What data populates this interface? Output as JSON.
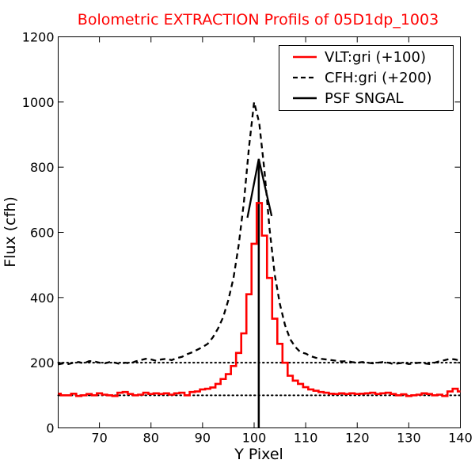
{
  "chart_data": {
    "type": "line",
    "title": "Bolometric EXTRACTION Profils of 05D1dp_1003",
    "xlabel": "Y Pixel",
    "ylabel": "Flux (cfh)",
    "xlim": [
      62,
      140
    ],
    "ylim": [
      0,
      1200
    ],
    "xticks": [
      "70",
      "80",
      "90",
      "100",
      "110",
      "120",
      "130",
      "140"
    ],
    "yticks": [
      "0",
      "200",
      "400",
      "600",
      "800",
      "1000",
      "1200"
    ],
    "grid": false,
    "legend_position": "top-right",
    "legend": [
      "VLT:gri (+100)",
      "CFH:gri (+200)",
      "PSF SNGAL"
    ],
    "series": [
      {
        "name": "VLT:gri (+100)",
        "style": "steps",
        "color": "#ff0000",
        "x": [
          62,
          63,
          64,
          65,
          66,
          67,
          68,
          69,
          70,
          71,
          72,
          73,
          74,
          75,
          76,
          77,
          78,
          79,
          80,
          81,
          82,
          83,
          84,
          85,
          86,
          87,
          88,
          89,
          90,
          91,
          92,
          93,
          94,
          95,
          96,
          97,
          98,
          99,
          100,
          101,
          102,
          103,
          104,
          105,
          106,
          107,
          108,
          109,
          110,
          111,
          112,
          113,
          114,
          115,
          116,
          117,
          118,
          119,
          120,
          121,
          122,
          123,
          124,
          125,
          126,
          127,
          128,
          129,
          130,
          131,
          132,
          133,
          134,
          135,
          136,
          137,
          138,
          139,
          140
        ],
        "y": [
          105,
          100,
          100,
          105,
          98,
          100,
          104,
          100,
          106,
          102,
          100,
          98,
          108,
          110,
          104,
          100,
          102,
          108,
          104,
          106,
          104,
          106,
          102,
          106,
          108,
          100,
          110,
          112,
          118,
          120,
          124,
          135,
          150,
          165,
          190,
          230,
          290,
          410,
          565,
          690,
          590,
          460,
          335,
          258,
          200,
          160,
          145,
          135,
          125,
          118,
          114,
          110,
          108,
          105,
          104,
          106,
          104,
          106,
          104,
          105,
          106,
          108,
          104,
          106,
          108,
          104,
          100,
          103,
          98,
          100,
          102,
          106,
          104,
          100,
          102,
          98,
          112,
          120,
          112
        ]
      },
      {
        "name": "CFH:gri (+200)",
        "style": "dashed",
        "color": "#000000",
        "x": [
          62,
          63,
          64,
          65,
          66,
          67,
          68,
          69,
          70,
          71,
          72,
          73,
          74,
          75,
          76,
          77,
          78,
          79,
          80,
          81,
          82,
          83,
          84,
          85,
          86,
          87,
          88,
          89,
          90,
          91,
          92,
          93,
          94,
          95,
          96,
          97,
          98,
          99,
          100,
          101,
          102,
          103,
          104,
          105,
          106,
          107,
          108,
          109,
          110,
          111,
          112,
          113,
          114,
          115,
          116,
          117,
          118,
          119,
          120,
          121,
          122,
          123,
          124,
          125,
          126,
          127,
          128,
          129,
          130,
          131,
          132,
          133,
          134,
          135,
          136,
          137,
          138,
          139,
          140
        ],
        "y": [
          195,
          198,
          196,
          200,
          202,
          198,
          205,
          204,
          200,
          198,
          202,
          200,
          196,
          200,
          198,
          204,
          208,
          212,
          210,
          206,
          210,
          212,
          208,
          214,
          218,
          226,
          232,
          240,
          248,
          258,
          278,
          305,
          340,
          392,
          460,
          560,
          690,
          860,
          1000,
          935,
          790,
          610,
          470,
          380,
          315,
          272,
          248,
          232,
          228,
          220,
          215,
          212,
          210,
          208,
          206,
          204,
          205,
          202,
          200,
          202,
          200,
          198,
          200,
          202,
          200,
          196,
          198,
          200,
          196,
          198,
          200,
          198,
          196,
          200,
          205,
          208,
          212,
          210,
          206
        ]
      },
      {
        "name": "PSF SNGAL",
        "style": "solid",
        "color": "#000000",
        "x": [
          98.7,
          100.9,
          103.4
        ],
        "y": [
          645,
          825,
          650
        ]
      }
    ],
    "annotations": [
      {
        "type": "hline",
        "y": 200,
        "style": "dotted"
      },
      {
        "type": "hline",
        "y": 100,
        "style": "dotted"
      },
      {
        "type": "vline",
        "x": 100.9,
        "style": "solid"
      }
    ]
  }
}
